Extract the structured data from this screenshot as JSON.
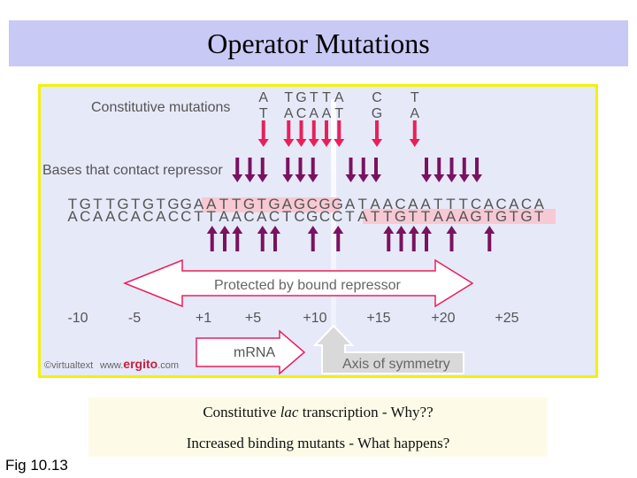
{
  "slide": {
    "title": "Operator Mutations",
    "fig_label": "Fig 10.13",
    "caption": {
      "line1_pre": "Constitutive ",
      "line1_italic": "lac",
      "line1_post": " transcription - Why??",
      "line2": "Increased binding mutants - What happens?"
    }
  },
  "diagram": {
    "constitutive_label": "Constitutive mutations",
    "mutations": [
      {
        "from": "A",
        "to": "T"
      },
      {
        "from": "T",
        "to": "A"
      },
      {
        "from": "G",
        "to": "C"
      },
      {
        "from": "T",
        "to": "A"
      },
      {
        "from": "T",
        "to": "A"
      },
      {
        "from": "A",
        "to": "T"
      },
      {
        "from": "C",
        "to": "G"
      },
      {
        "from": "T",
        "to": "A"
      }
    ],
    "contact_label": "Bases that contact repressor",
    "top_strand": "TGTTGTGTGGAATTGTGAGCGGATAACAATTTCACACA",
    "bottom_strand": "ACAACACACCTTAACACTCGCCTATTGTTAAAGTGTGT",
    "protected_label": "Protected by bound repressor",
    "positions": [
      "-10",
      "-5",
      "+1",
      "+5",
      "+10",
      "+15",
      "+20",
      "+25"
    ],
    "mrna_label": "mRNA",
    "symmetry_label": "Axis of symmetry",
    "credit_text": "©virtualtext",
    "credit_url_prefix": "www.",
    "credit_url_brand": "ergito",
    "credit_url_suffix": ".com",
    "colors": {
      "mutation_arrow": "#e8205a",
      "contact_arrow": "#7a1260",
      "highlight": "#f7c9d3",
      "brand": "#c81e3c",
      "panel_bg": "#e6e9f8",
      "frame": "#f2f20a"
    }
  }
}
